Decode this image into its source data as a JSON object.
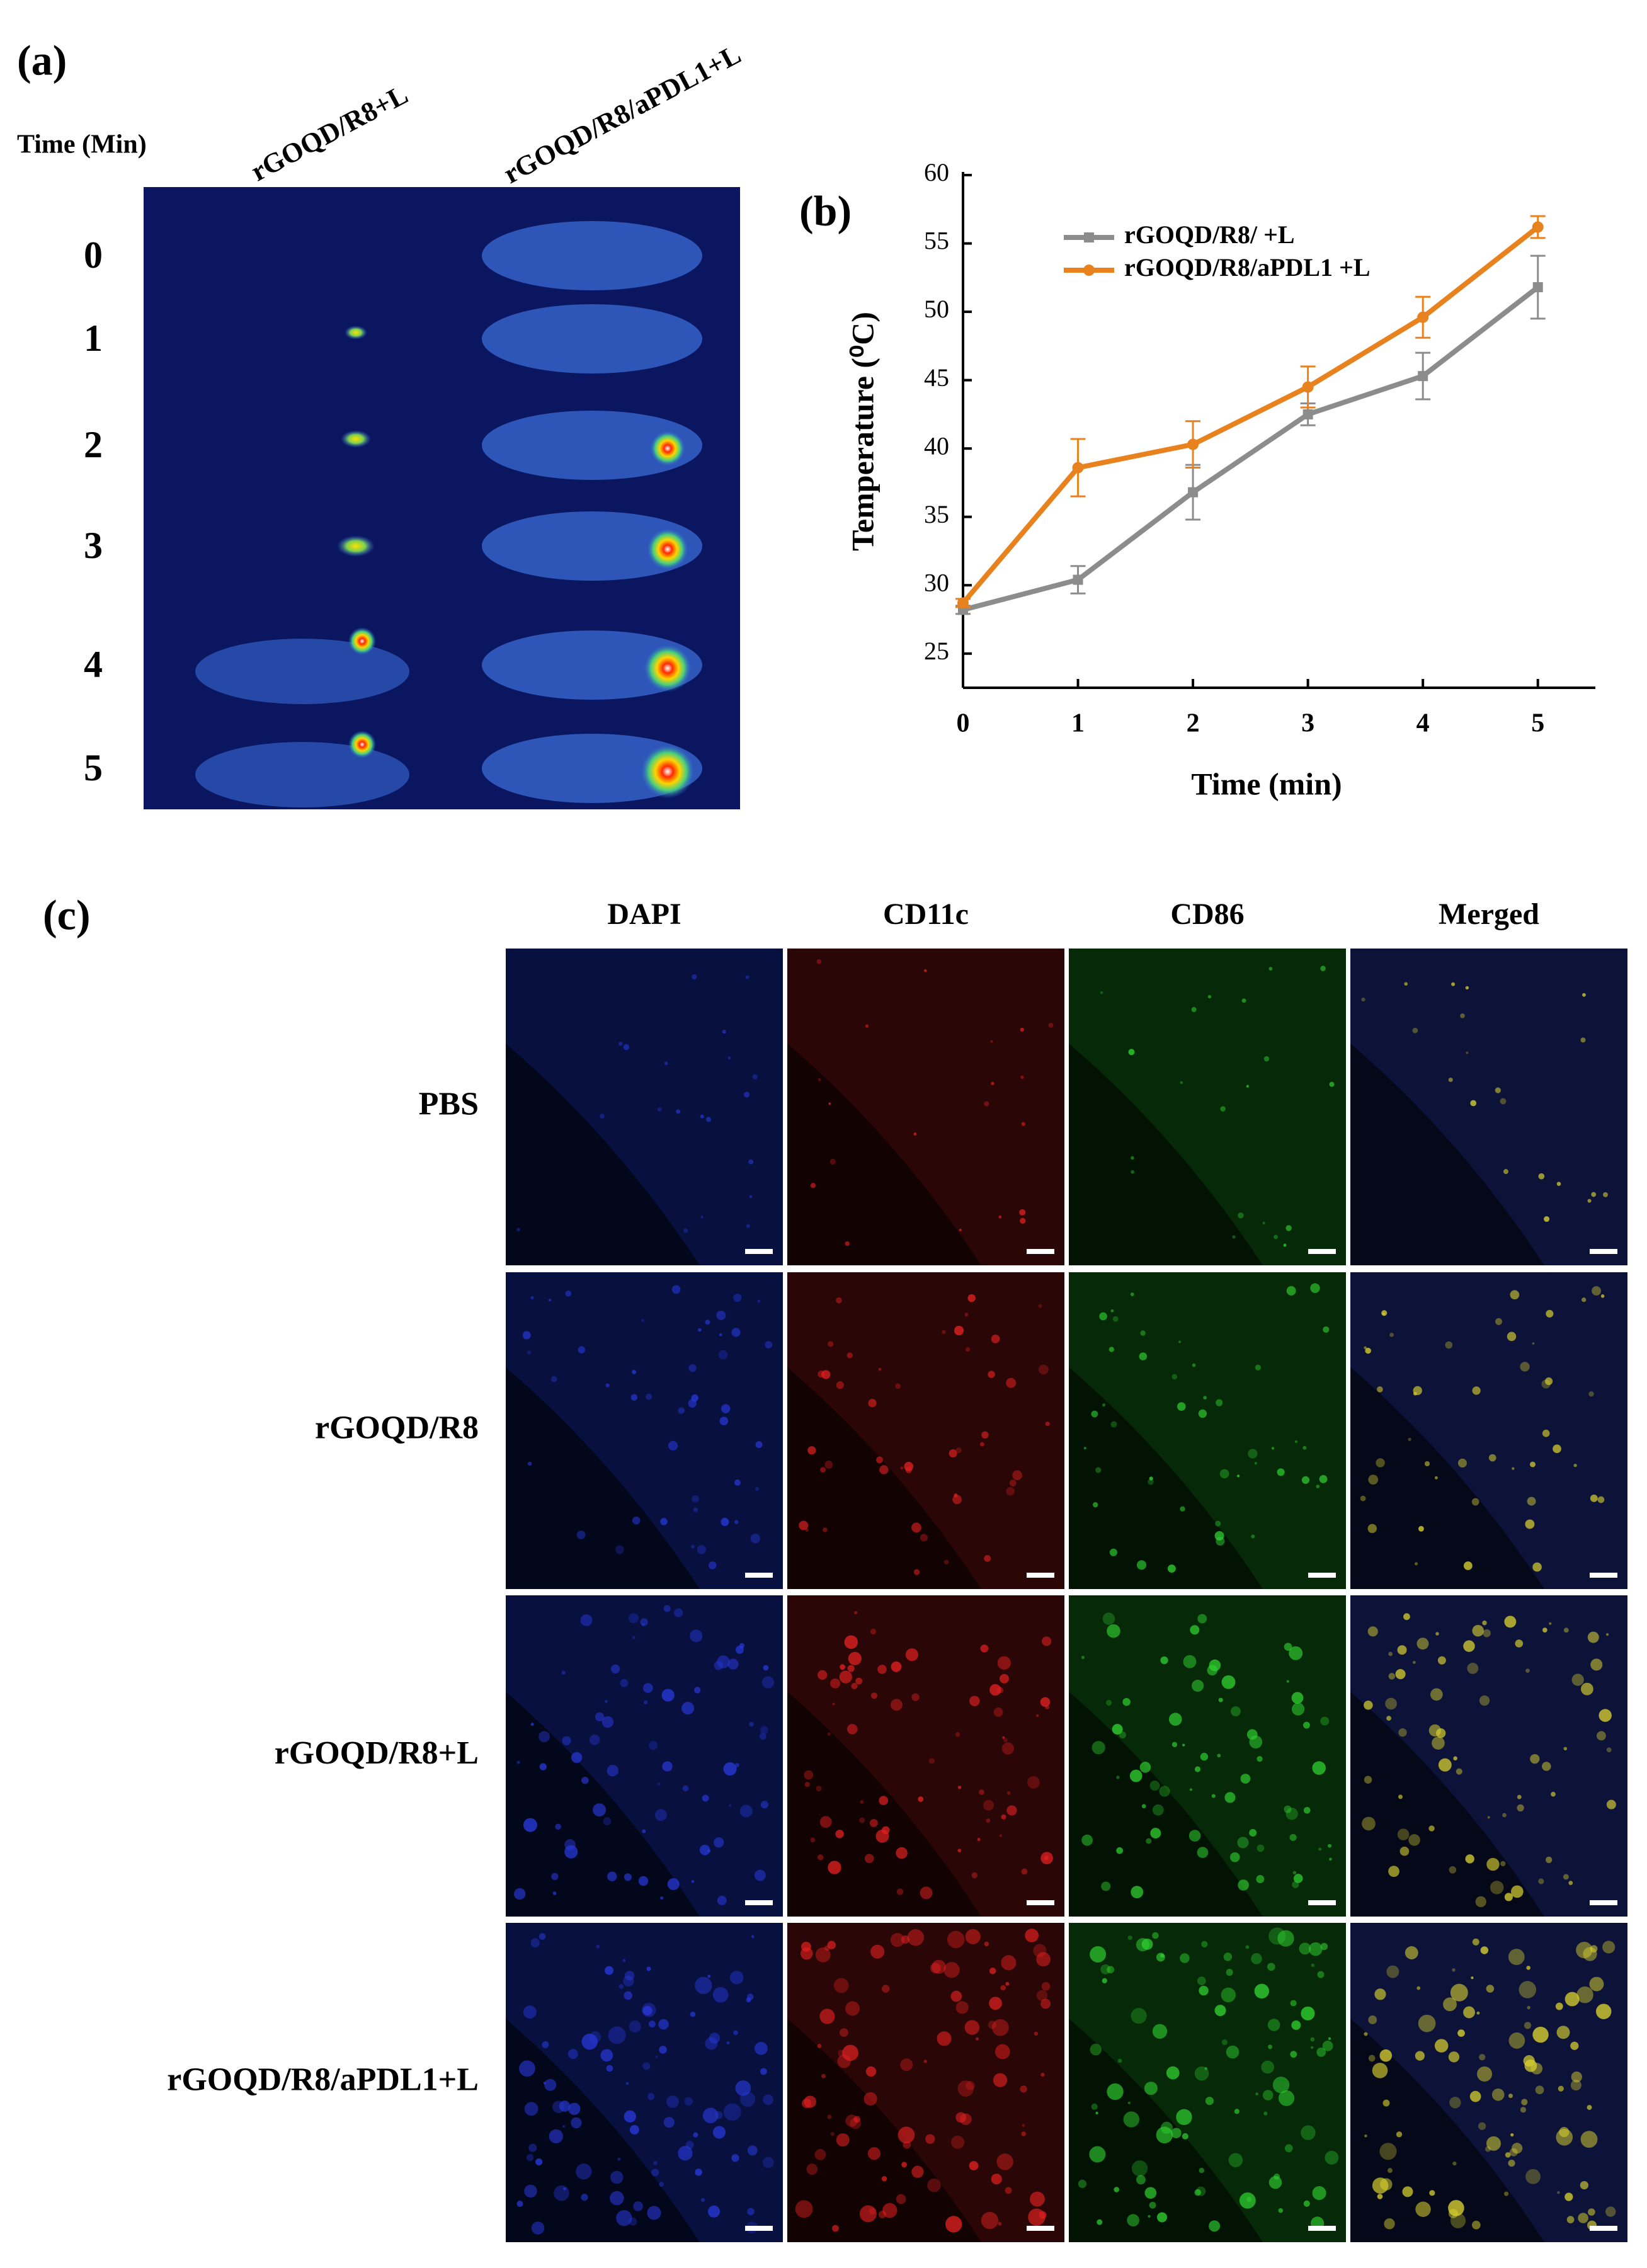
{
  "panel_a": {
    "label": "(a)",
    "time_label": "Time (Min)",
    "columns": [
      "rGOQD/R8+L",
      "rGOQD/R8/aPDL1+L"
    ],
    "rows": [
      "0",
      "1",
      "2",
      "3",
      "4",
      "5"
    ]
  },
  "chart_data": {
    "type": "line",
    "label": "(b)",
    "xlabel": "Time (min)",
    "ylabel": "Temperature (⁰C)",
    "x": [
      0,
      1,
      2,
      3,
      4,
      5
    ],
    "series": [
      {
        "name": "rGOQD/R8/ +L",
        "color": "#8c8c8c",
        "marker": "square",
        "values": [
          28.2,
          30.4,
          36.8,
          42.5,
          45.3,
          51.8
        ],
        "errors": [
          0.3,
          1.0,
          2.0,
          0.8,
          1.7,
          2.3
        ]
      },
      {
        "name": "rGOQD/R8/aPDL1 +L",
        "color": "#e8821e",
        "marker": "circle",
        "values": [
          28.7,
          38.6,
          40.3,
          44.5,
          49.6,
          56.2
        ],
        "errors": [
          0.3,
          2.1,
          1.7,
          1.5,
          1.5,
          0.8
        ]
      }
    ],
    "xlim": [
      0,
      5.5
    ],
    "xticks": [
      0,
      1,
      2,
      3,
      4,
      5
    ],
    "ylim": [
      22.5,
      60
    ],
    "yticks": [
      25,
      30,
      35,
      40,
      45,
      50,
      55,
      60
    ]
  },
  "panel_c": {
    "label": "(c)",
    "columns": [
      "DAPI",
      "CD11c",
      "CD86",
      "Merged"
    ],
    "rows": [
      "PBS",
      "rGOQD/R8",
      "rGOQD/R8+L",
      "rGOQD/R8/aPDL1+L"
    ]
  }
}
